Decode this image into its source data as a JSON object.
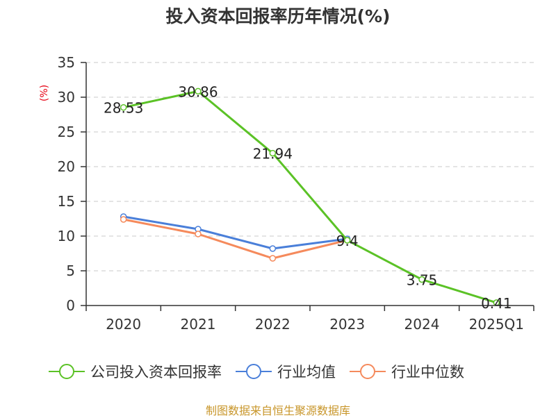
{
  "title": "投入资本回报率历年情况(%)",
  "source_note": "制图数据来自恒生聚源数据库",
  "chart_data": {
    "type": "line",
    "title": "投入资本回报率历年情况(%)",
    "ylabel": "(%)",
    "xlabel": "",
    "categories": [
      "2020",
      "2021",
      "2022",
      "2023",
      "2024",
      "2025Q1"
    ],
    "ylim": [
      0,
      35
    ],
    "yticks": [
      0,
      5,
      10,
      15,
      20,
      25,
      30,
      35
    ],
    "grid": true,
    "legend_position": "bottom",
    "series": [
      {
        "name": "公司投入资本回报率",
        "color": "#5bc226",
        "values": [
          28.53,
          30.86,
          21.94,
          9.4,
          3.75,
          0.41
        ],
        "labels": [
          "28.53",
          "30.86",
          "21.94",
          "9.4",
          "3.75",
          "0.41"
        ]
      },
      {
        "name": "行业均值",
        "color": "#4a7fd9",
        "values": [
          12.8,
          11.0,
          8.2,
          9.6,
          null,
          null
        ]
      },
      {
        "name": "行业中位数",
        "color": "#f58a5c",
        "values": [
          12.4,
          10.3,
          6.8,
          9.4,
          null,
          null
        ]
      }
    ]
  }
}
